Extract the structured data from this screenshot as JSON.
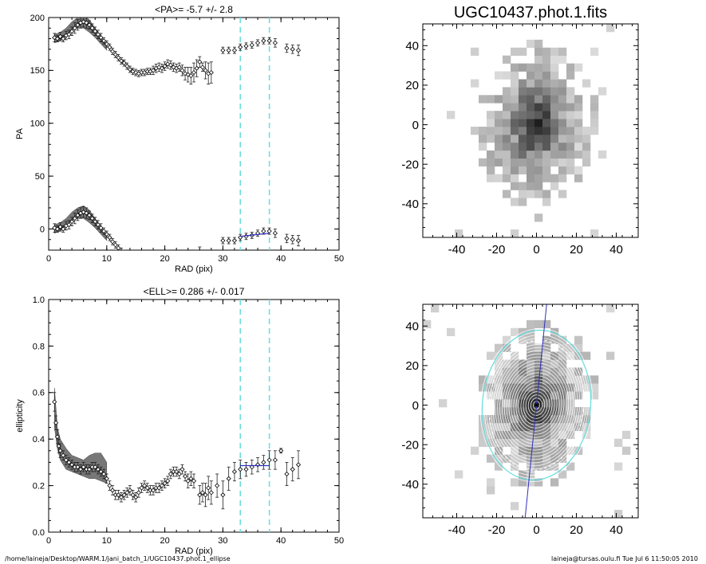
{
  "footer": {
    "path": "/home/laineja/Desktop/WARM.1/jani_batch_1/UGC10437.phot.1_ellipse",
    "user_stamp": "laineja@tursas.oulu.fi  Tue Jul  6 11:50:05 2010"
  },
  "colors": {
    "cyan": "#66dddd",
    "blue": "#3030c0",
    "grey_band": "#777777"
  },
  "chart_data": [
    {
      "id": "pa-profile",
      "type": "scatter",
      "title": "<PA>=  -5.7 +/-   2.8",
      "xlabel": "RAD (pix)",
      "ylabel": "PA",
      "xlim": [
        0,
        50
      ],
      "ylim": [
        -20,
        200
      ],
      "xticks": [
        0,
        10,
        20,
        30,
        40,
        50
      ],
      "yticks": [
        0,
        50,
        100,
        150,
        200
      ],
      "vlines": [
        33,
        38
      ],
      "fit_line": {
        "x": [
          33,
          38
        ],
        "y": [
          -7,
          -4
        ]
      },
      "band": {
        "x": [
          1,
          2,
          3,
          4,
          5,
          6,
          7,
          8,
          9,
          10
        ],
        "lo": [
          176,
          178,
          182,
          188,
          190,
          190,
          186,
          181,
          175,
          169
        ],
        "hi": [
          184,
          186,
          190,
          196,
          200,
          202,
          198,
          190,
          182,
          175
        ]
      },
      "series": [
        {
          "x": [
            1,
            1.5,
            2,
            2.5,
            3,
            3.5,
            4,
            4.5,
            5,
            5.5,
            6,
            6.5,
            7,
            7.5,
            8,
            8.5,
            9,
            9.5,
            10,
            10.5,
            11,
            11.5,
            12,
            12.5,
            13,
            13.5,
            14,
            14.5,
            15,
            15.5,
            16,
            16.5,
            17,
            17.5,
            18,
            18.5,
            19,
            19.5,
            20,
            20.5,
            21,
            21.5,
            22,
            22.5,
            23,
            23.5,
            24,
            24.5,
            25,
            25.5,
            26,
            26.5,
            27,
            27.5,
            28,
            30,
            31,
            32,
            33,
            34,
            35,
            36,
            37,
            38,
            39,
            41,
            42,
            43
          ],
          "y": [
            181,
            180,
            182,
            180,
            183,
            184,
            187,
            190,
            193,
            195,
            196,
            195,
            193,
            190,
            187,
            184,
            181,
            178,
            175,
            172,
            168,
            165,
            162,
            159,
            157,
            154,
            151,
            149,
            148,
            147,
            148,
            148,
            149,
            149,
            150,
            152,
            153,
            152,
            154,
            156,
            155,
            153,
            152,
            153,
            150,
            147,
            146,
            145,
            148,
            152,
            158,
            153,
            150,
            147,
            148,
            169,
            169,
            169,
            172,
            173,
            174,
            176,
            178,
            178,
            176,
            171,
            170,
            169
          ],
          "err": [
            4,
            3,
            4,
            3,
            4,
            4,
            4,
            5,
            5,
            5,
            5,
            5,
            4,
            4,
            4,
            4,
            4,
            3,
            3,
            3,
            3,
            3,
            3,
            3,
            3,
            3,
            3,
            3,
            3,
            3,
            3,
            3,
            3,
            3,
            4,
            4,
            4,
            4,
            4,
            4,
            4,
            4,
            4,
            4,
            5,
            6,
            7,
            8,
            9,
            8,
            5,
            4,
            8,
            10,
            10,
            3,
            3,
            3,
            3,
            3,
            3,
            3,
            3,
            3,
            4,
            4,
            4,
            5
          ]
        }
      ]
    },
    {
      "id": "image-map",
      "type": "heatmap",
      "title": "UGC10437.phot.1.fits",
      "xlim": [
        -57,
        51
      ],
      "ylim": [
        -57,
        51
      ],
      "xticks": [
        -40,
        -20,
        0,
        20,
        40
      ],
      "yticks": [
        -40,
        -20,
        0,
        20,
        40
      ]
    },
    {
      "id": "ell-profile",
      "type": "scatter",
      "title": "<ELL>= 0.286 +/-  0.017",
      "xlabel": "RAD (pix)",
      "ylabel": "ellipticity",
      "xlim": [
        0,
        50
      ],
      "ylim": [
        0,
        1
      ],
      "xticks": [
        0,
        10,
        20,
        30,
        40,
        50
      ],
      "yticks": [
        0.0,
        0.2,
        0.4,
        0.6,
        0.8,
        1.0
      ],
      "vlines": [
        33,
        38
      ],
      "fit_line": {
        "x": [
          33,
          38
        ],
        "y": [
          0.286,
          0.286
        ]
      },
      "band": {
        "x": [
          1,
          1.5,
          2,
          3,
          4,
          5,
          6,
          7,
          8,
          9,
          10
        ],
        "lo": [
          0.45,
          0.36,
          0.31,
          0.27,
          0.26,
          0.25,
          0.24,
          0.23,
          0.23,
          0.22,
          0.21
        ],
        "hi": [
          0.62,
          0.45,
          0.4,
          0.36,
          0.33,
          0.32,
          0.31,
          0.33,
          0.34,
          0.34,
          0.3
        ]
      },
      "series": [
        {
          "x": [
            1,
            1.25,
            1.5,
            1.75,
            2,
            2.5,
            3,
            3.5,
            4,
            4.5,
            5,
            5.5,
            6,
            6.5,
            7,
            7.5,
            8,
            8.5,
            9,
            9.5,
            10,
            10.5,
            11,
            11.5,
            12,
            12.5,
            13,
            13.5,
            14,
            14.5,
            15,
            15.5,
            16,
            16.5,
            17,
            17.5,
            18,
            18.5,
            19,
            19.5,
            20,
            20.5,
            21,
            21.5,
            22,
            22.5,
            23,
            23.5,
            24,
            24.5,
            25,
            26,
            26.5,
            27,
            27.5,
            28,
            29,
            30,
            31,
            32,
            33,
            34,
            35,
            36,
            37,
            38,
            39,
            40,
            41,
            42,
            43
          ],
          "y": [
            0.56,
            0.47,
            0.41,
            0.37,
            0.35,
            0.33,
            0.31,
            0.3,
            0.29,
            0.28,
            0.28,
            0.27,
            0.28,
            0.27,
            0.27,
            0.28,
            0.28,
            0.27,
            0.26,
            0.25,
            0.23,
            0.2,
            0.18,
            0.16,
            0.16,
            0.15,
            0.16,
            0.17,
            0.18,
            0.16,
            0.15,
            0.17,
            0.19,
            0.2,
            0.19,
            0.18,
            0.18,
            0.19,
            0.19,
            0.2,
            0.21,
            0.22,
            0.25,
            0.26,
            0.26,
            0.25,
            0.27,
            0.24,
            0.22,
            0.23,
            0.22,
            0.16,
            0.17,
            0.16,
            0.19,
            0.17,
            0.2,
            0.16,
            0.23,
            0.26,
            0.27,
            0.27,
            0.28,
            0.29,
            0.3,
            0.31,
            0.31,
            0.35,
            0.25,
            0.27,
            0.29
          ],
          "err": [
            0.04,
            0.03,
            0.03,
            0.03,
            0.03,
            0.02,
            0.02,
            0.02,
            0.02,
            0.02,
            0.02,
            0.02,
            0.02,
            0.02,
            0.02,
            0.02,
            0.02,
            0.02,
            0.02,
            0.02,
            0.02,
            0.02,
            0.02,
            0.02,
            0.02,
            0.02,
            0.02,
            0.02,
            0.02,
            0.02,
            0.02,
            0.02,
            0.02,
            0.02,
            0.02,
            0.02,
            0.02,
            0.02,
            0.02,
            0.02,
            0.02,
            0.02,
            0.02,
            0.02,
            0.02,
            0.02,
            0.02,
            0.02,
            0.03,
            0.03,
            0.03,
            0.04,
            0.04,
            0.05,
            0.05,
            0.05,
            0.05,
            0.06,
            0.05,
            0.04,
            0.04,
            0.03,
            0.03,
            0.03,
            0.03,
            0.04,
            0.04,
            0.01,
            0.05,
            0.05,
            0.06
          ]
        }
      ]
    },
    {
      "id": "isophote-map",
      "type": "heatmap",
      "xlim": [
        -57,
        51
      ],
      "ylim": [
        -57,
        51
      ],
      "xticks": [
        -40,
        -20,
        0,
        20,
        40
      ],
      "yticks": [
        -40,
        -20,
        0,
        20,
        40
      ],
      "major_axis_pa_deg": -5.7,
      "outer_ellipse": {
        "sma": 38,
        "ell": 0.286,
        "cx": 0,
        "cy": 0
      },
      "inner_ellipse": {
        "sma": 33,
        "ell": 0.286,
        "cx": 0,
        "cy": 0
      }
    }
  ]
}
